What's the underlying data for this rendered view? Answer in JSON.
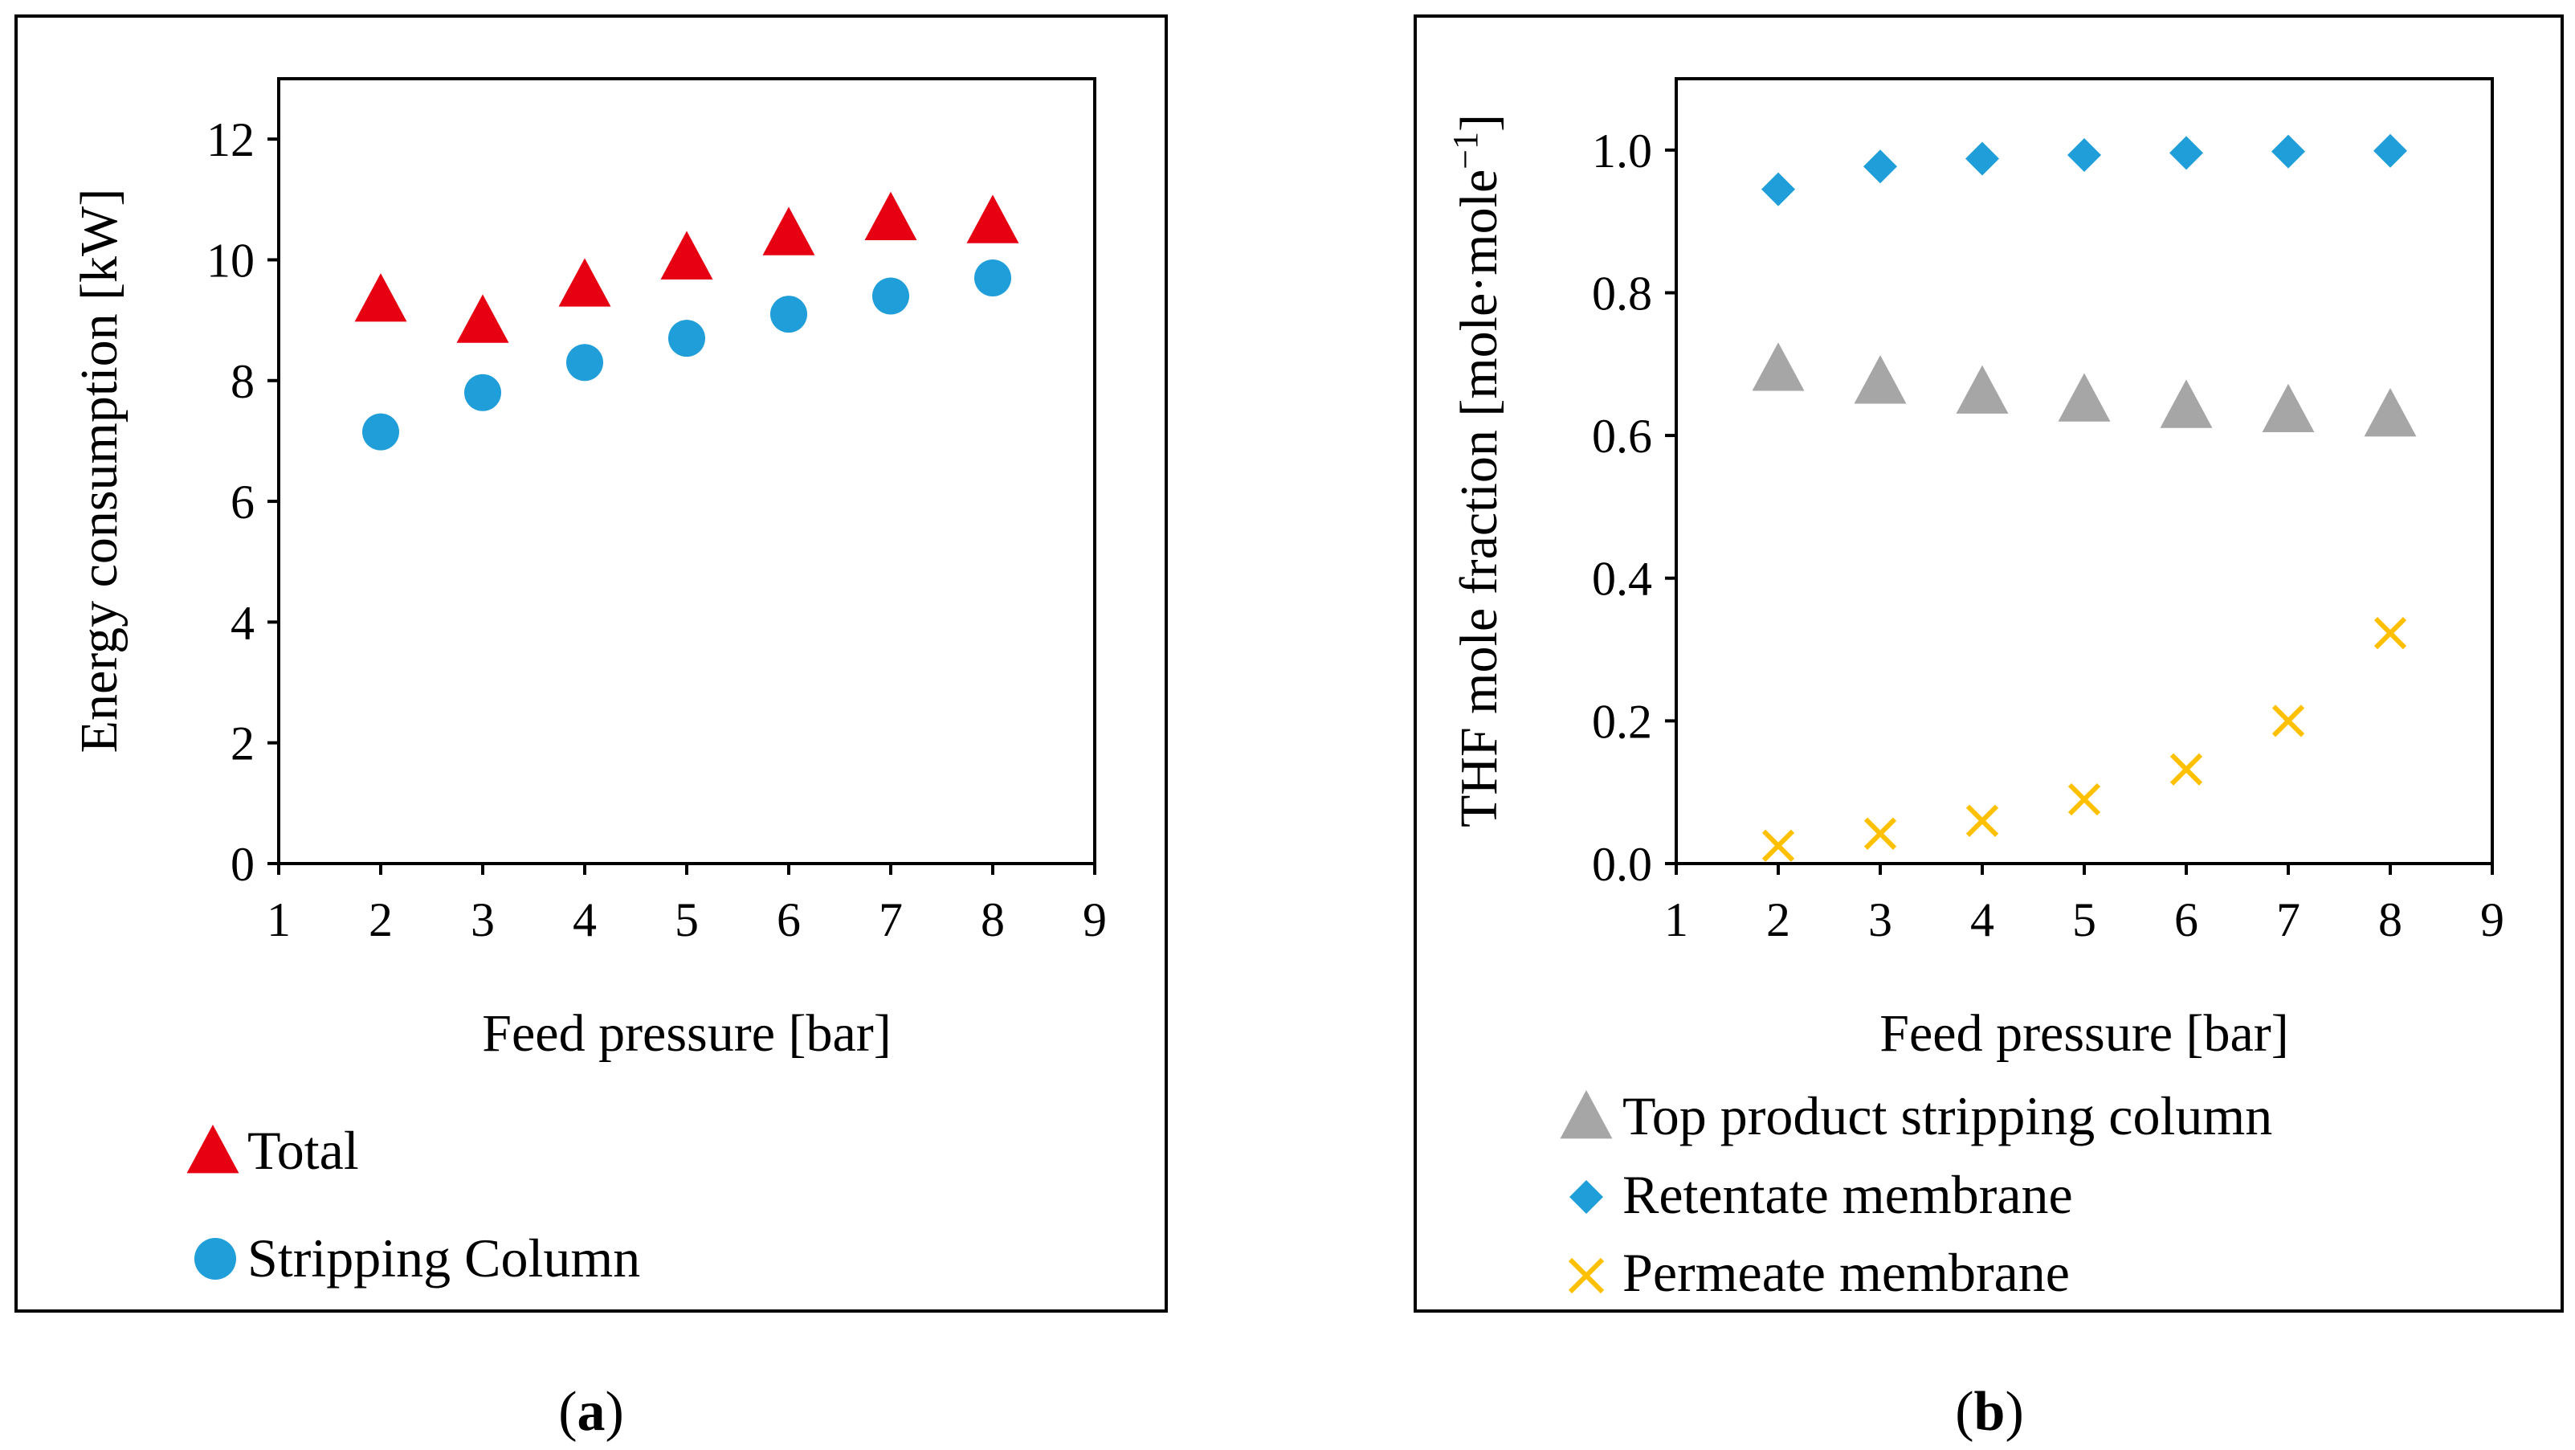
{
  "colors": {
    "total": "#e60012",
    "stripping": "#1f9ed9",
    "top_product": "#a6a6a6",
    "retentate": "#1f9ed9",
    "permeate": "#ffc000"
  },
  "captions": {
    "a_letter": "a",
    "b_letter": "b"
  },
  "chart_data": [
    {
      "type": "scatter",
      "panel": "a",
      "xlabel": "Feed pressure [bar]",
      "ylabel": "Energy consumption [kW]",
      "xlim": [
        1,
        9
      ],
      "ylim": [
        0,
        13
      ],
      "xticks": [
        "1",
        "2",
        "3",
        "4",
        "5",
        "6",
        "7",
        "8",
        "9"
      ],
      "yticks": [
        "0",
        "2",
        "4",
        "6",
        "8",
        "10",
        "12"
      ],
      "grid": false,
      "legend_position": "bottom",
      "series": [
        {
          "name": "Total",
          "marker": "triangle",
          "x": [
            2,
            3,
            4,
            5,
            6,
            7,
            8
          ],
          "y": [
            9.3,
            8.95,
            9.55,
            10.0,
            10.4,
            10.65,
            10.6
          ]
        },
        {
          "name": "Stripping Column",
          "marker": "circle",
          "x": [
            2,
            3,
            4,
            5,
            6,
            7,
            8
          ],
          "y": [
            7.15,
            7.8,
            8.3,
            8.7,
            9.1,
            9.4,
            9.7
          ]
        }
      ]
    },
    {
      "type": "scatter",
      "panel": "b",
      "xlabel": "Feed pressure [bar]",
      "ylabel": "THF mole fraction [mole·mole",
      "ylabel_sup": "−1",
      "ylabel_end": "]",
      "xlim": [
        1,
        9
      ],
      "ylim": [
        0,
        1.1
      ],
      "xticks": [
        "1",
        "2",
        "3",
        "4",
        "5",
        "6",
        "7",
        "8",
        "9"
      ],
      "yticks": [
        "0.0",
        "0.2",
        "0.4",
        "0.6",
        "0.8",
        "1.0"
      ],
      "grid": false,
      "legend_position": "bottom",
      "series": [
        {
          "name": "Top product stripping column",
          "marker": "triangle",
          "x": [
            2,
            3,
            4,
            5,
            6,
            7,
            8
          ],
          "y": [
            0.69,
            0.672,
            0.658,
            0.647,
            0.638,
            0.632,
            0.626
          ]
        },
        {
          "name": "Retentate membrane",
          "marker": "diamond",
          "x": [
            2,
            3,
            4,
            5,
            6,
            7,
            8
          ],
          "y": [
            0.945,
            0.977,
            0.988,
            0.993,
            0.996,
            0.998,
            0.999
          ]
        },
        {
          "name": "Permeate membrane",
          "marker": "x",
          "x": [
            2,
            3,
            4,
            5,
            6,
            7,
            8
          ],
          "y": [
            0.025,
            0.042,
            0.06,
            0.09,
            0.132,
            0.2,
            0.323
          ]
        }
      ]
    }
  ]
}
